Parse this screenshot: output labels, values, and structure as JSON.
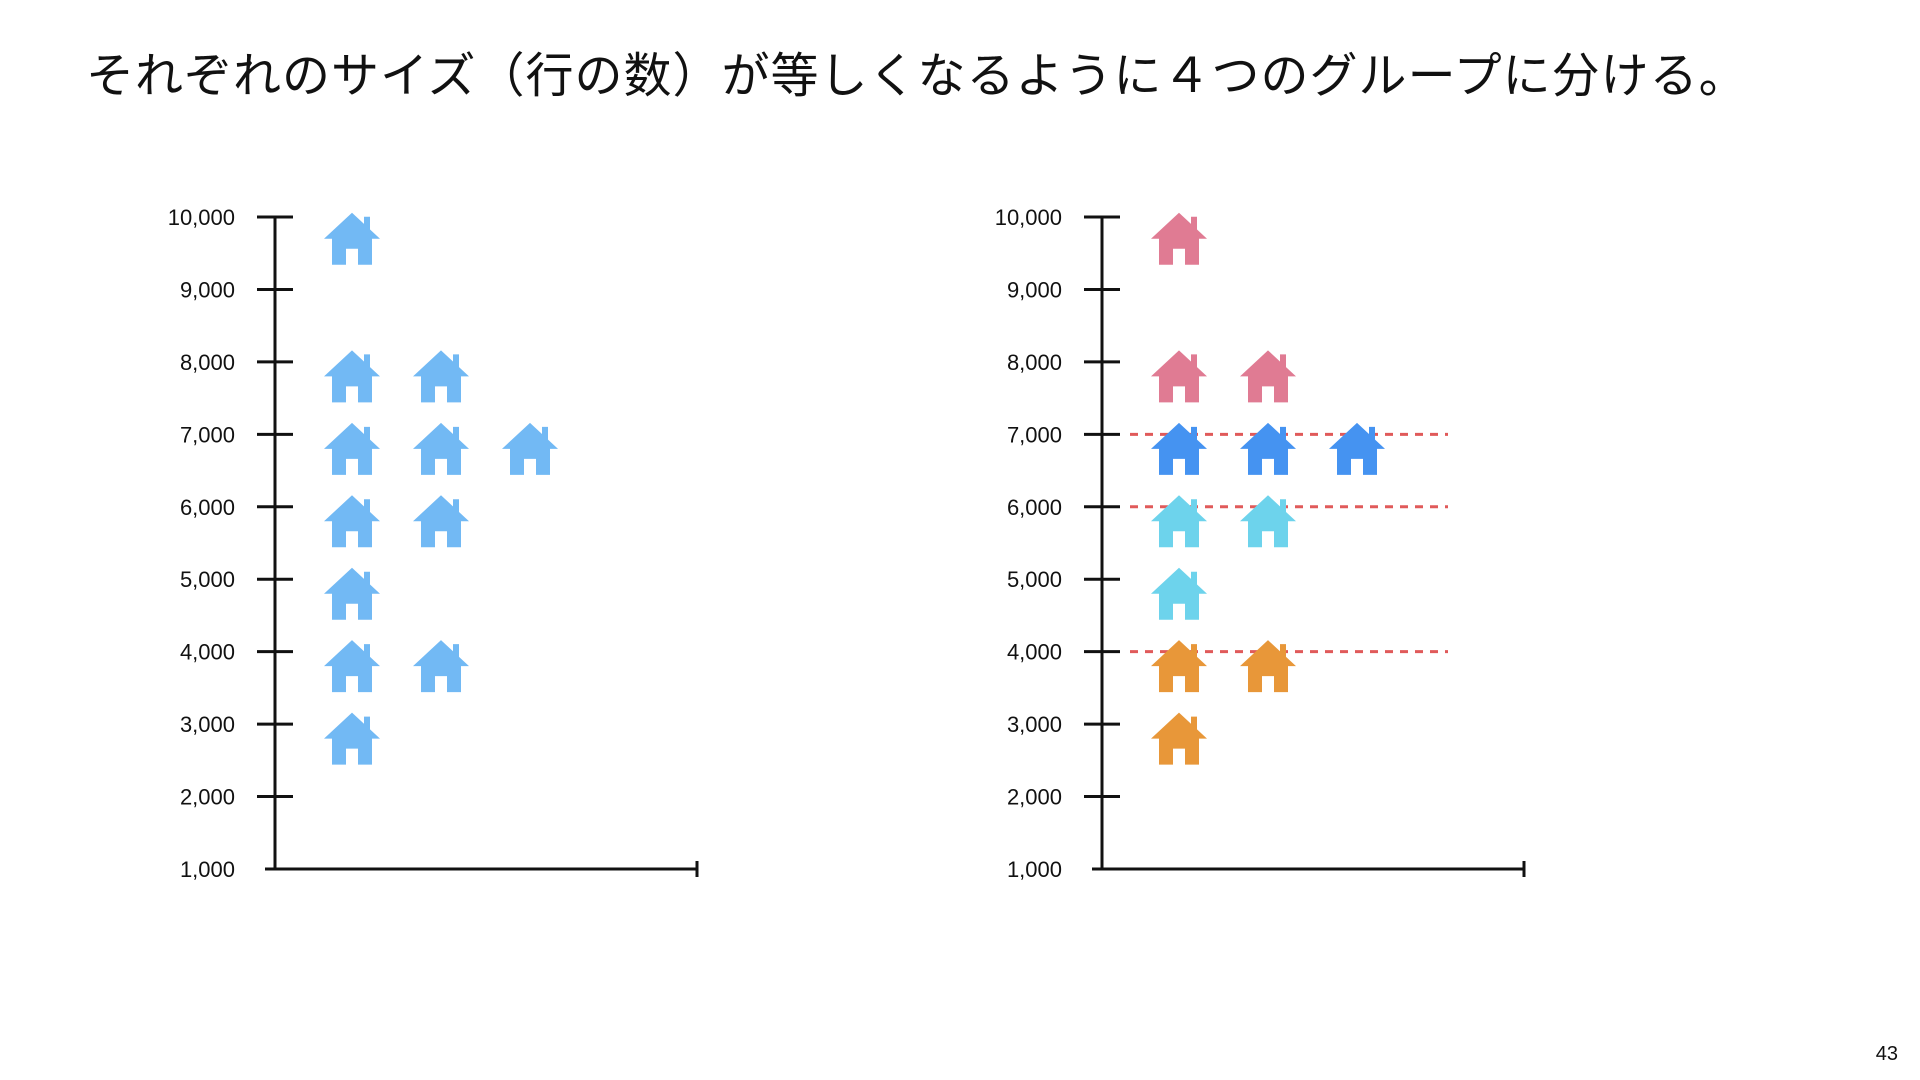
{
  "slide": {
    "title": "それぞれのサイズ（行の数）が等しくなるように４つのグループに分ける。",
    "page_number": "43"
  },
  "icon": "house-icon",
  "colors": {
    "axis": "#111111",
    "divider": "#e05a5a",
    "ungrouped": "#72b9f4",
    "groups": [
      "#e07b93",
      "#4593f1",
      "#6dd3ec",
      "#e89739"
    ]
  },
  "chart_data": [
    {
      "type": "scatter",
      "ylim": [
        1000,
        10000
      ],
      "ytick_values": [
        1000,
        2000,
        3000,
        4000,
        5000,
        6000,
        7000,
        8000,
        9000,
        10000
      ],
      "ytick_labels": [
        "1,000",
        "2,000",
        "3,000",
        "4,000",
        "5,000",
        "6,000",
        "7,000",
        "8,000",
        "9,000",
        "10,000"
      ],
      "points": [
        {
          "y": 9700,
          "group": null
        },
        {
          "y": 7800,
          "group": null
        },
        {
          "y": 7800,
          "group": null
        },
        {
          "y": 6800,
          "group": null
        },
        {
          "y": 6800,
          "group": null
        },
        {
          "y": 6800,
          "group": null
        },
        {
          "y": 5800,
          "group": null
        },
        {
          "y": 5800,
          "group": null
        },
        {
          "y": 4800,
          "group": null
        },
        {
          "y": 3800,
          "group": null
        },
        {
          "y": 3800,
          "group": null
        },
        {
          "y": 2800,
          "group": null
        }
      ],
      "dividers": []
    },
    {
      "type": "scatter",
      "ylim": [
        1000,
        10000
      ],
      "ytick_values": [
        1000,
        2000,
        3000,
        4000,
        5000,
        6000,
        7000,
        8000,
        9000,
        10000
      ],
      "ytick_labels": [
        "1,000",
        "2,000",
        "3,000",
        "4,000",
        "5,000",
        "6,000",
        "7,000",
        "8,000",
        "9,000",
        "10,000"
      ],
      "points": [
        {
          "y": 9700,
          "group": 0
        },
        {
          "y": 7800,
          "group": 0
        },
        {
          "y": 7800,
          "group": 0
        },
        {
          "y": 6800,
          "group": 1
        },
        {
          "y": 6800,
          "group": 1
        },
        {
          "y": 6800,
          "group": 1
        },
        {
          "y": 5800,
          "group": 2
        },
        {
          "y": 5800,
          "group": 2
        },
        {
          "y": 4800,
          "group": 2
        },
        {
          "y": 3800,
          "group": 3
        },
        {
          "y": 3800,
          "group": 3
        },
        {
          "y": 2800,
          "group": 3
        }
      ],
      "dividers": [
        7000,
        6000,
        4000
      ]
    }
  ]
}
